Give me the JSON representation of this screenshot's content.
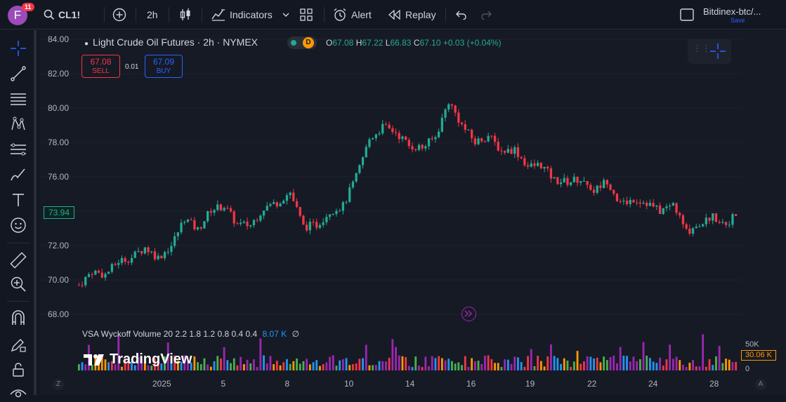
{
  "topbar": {
    "avatar_letter": "F",
    "notification_count": "11",
    "symbol": "CL1!",
    "interval": "2h",
    "indicators_label": "Indicators",
    "alert_label": "Alert",
    "replay_label": "Replay",
    "layout_name": "Bitdinex-btc/...",
    "save_label": "Save"
  },
  "legend": {
    "title": "Light Crude Oil Futures · 2h · NYMEX",
    "badge": "D",
    "o_key": "O",
    "o_val": "67.08",
    "h_key": "H",
    "h_val": "67.22",
    "l_key": "L",
    "l_val": "66.83",
    "c_key": "C",
    "c_val": "67.10",
    "change": "+0.03 (+0.04%)"
  },
  "trade": {
    "sell_price": "67.08",
    "sell_label": "SELL",
    "spread": "0.01",
    "buy_price": "67.09",
    "buy_label": "BUY"
  },
  "price_axis": {
    "labels": [
      "84.00",
      "82.00",
      "80.00",
      "78.00",
      "76.00",
      "74.00",
      "72.00",
      "70.00",
      "68.00"
    ],
    "crosshair_label": "73.94"
  },
  "volume": {
    "title": "VSA Wyckoff Volume 20 2.2 1.8 1.2 0.8 0.4 0.4",
    "value": "8.07 K",
    "extra": "∅",
    "axis_top": "50K",
    "axis_badge": "30.06 K",
    "axis_zero": "0"
  },
  "watermark": "TradingView",
  "time_axis": {
    "labels": [
      "2025",
      "5",
      "8",
      "10",
      "14",
      "16",
      "19",
      "22",
      "24",
      "28"
    ],
    "left_btn": "Z",
    "right_btn": "A"
  },
  "colors": {
    "up": "#22ab94",
    "down": "#f23645",
    "vol_purple": "#9c27b0",
    "vol_orange": "#ff9800",
    "vol_green": "#4caf50",
    "vol_blue": "#2196f3",
    "vol_red": "#f23645",
    "background": "#161a25"
  },
  "chart_data": {
    "type": "candlestick",
    "y_range": [
      67.5,
      84.5
    ],
    "close_path": [
      {
        "x": 0,
        "y": 69.7
      },
      {
        "x": 4,
        "y": 70.5
      },
      {
        "x": 8,
        "y": 70.3
      },
      {
        "x": 12,
        "y": 71.1
      },
      {
        "x": 16,
        "y": 71.3
      },
      {
        "x": 20,
        "y": 71.9
      },
      {
        "x": 24,
        "y": 71.3
      },
      {
        "x": 28,
        "y": 72.0
      },
      {
        "x": 32,
        "y": 73.6
      },
      {
        "x": 36,
        "y": 72.9
      },
      {
        "x": 40,
        "y": 74.1
      },
      {
        "x": 44,
        "y": 74.3
      },
      {
        "x": 48,
        "y": 73.2
      },
      {
        "x": 52,
        "y": 73.2
      },
      {
        "x": 56,
        "y": 74.2
      },
      {
        "x": 60,
        "y": 74.5
      },
      {
        "x": 64,
        "y": 75.1
      },
      {
        "x": 68,
        "y": 73.1
      },
      {
        "x": 72,
        "y": 73.2
      },
      {
        "x": 76,
        "y": 74.0
      },
      {
        "x": 80,
        "y": 74.3
      },
      {
        "x": 84,
        "y": 76.0
      },
      {
        "x": 88,
        "y": 78.2
      },
      {
        "x": 92,
        "y": 78.9
      },
      {
        "x": 96,
        "y": 78.6
      },
      {
        "x": 100,
        "y": 77.8
      },
      {
        "x": 104,
        "y": 77.7
      },
      {
        "x": 108,
        "y": 78.3
      },
      {
        "x": 112,
        "y": 80.4
      },
      {
        "x": 116,
        "y": 79.0
      },
      {
        "x": 120,
        "y": 78.0
      },
      {
        "x": 124,
        "y": 78.4
      },
      {
        "x": 128,
        "y": 77.5
      },
      {
        "x": 132,
        "y": 77.6
      },
      {
        "x": 136,
        "y": 76.6
      },
      {
        "x": 140,
        "y": 76.7
      },
      {
        "x": 144,
        "y": 75.8
      },
      {
        "x": 148,
        "y": 75.7
      },
      {
        "x": 152,
        "y": 75.9
      },
      {
        "x": 156,
        "y": 75.2
      },
      {
        "x": 160,
        "y": 75.8
      },
      {
        "x": 164,
        "y": 74.4
      },
      {
        "x": 168,
        "y": 74.7
      },
      {
        "x": 172,
        "y": 74.5
      },
      {
        "x": 176,
        "y": 74.0
      },
      {
        "x": 180,
        "y": 74.4
      },
      {
        "x": 184,
        "y": 72.8
      },
      {
        "x": 188,
        "y": 73.3
      },
      {
        "x": 192,
        "y": 73.7
      },
      {
        "x": 196,
        "y": 73.3
      },
      {
        "x": 200,
        "y": 73.9
      }
    ],
    "volume_range": [
      0,
      50000
    ]
  }
}
